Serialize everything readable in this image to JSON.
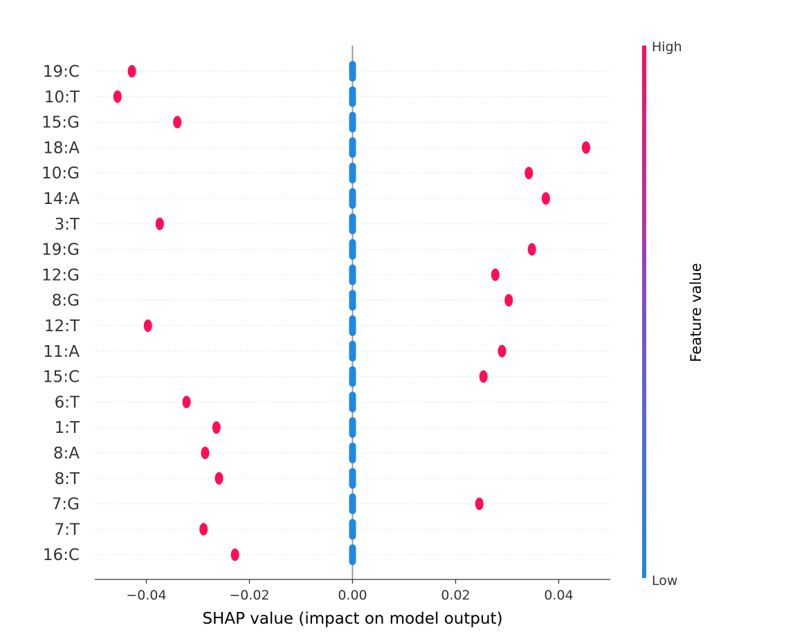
{
  "chart_data": {
    "type": "scatter",
    "subtype": "shap-beeswarm",
    "title": "",
    "xlabel": "SHAP value (impact on model output)",
    "ylabel": "",
    "xlim": [
      -0.05,
      0.05
    ],
    "xticks": [
      -0.04,
      -0.02,
      0.0,
      0.02,
      0.04
    ],
    "xtick_labels": [
      "−0.04",
      "−0.02",
      "0.00",
      "0.02",
      "0.04"
    ],
    "grid": "dotted horizontal row guides",
    "features": [
      "19:C",
      "10:T",
      "15:G",
      "18:A",
      "10:G",
      "14:A",
      "3:T",
      "19:G",
      "12:G",
      "8:G",
      "12:T",
      "11:A",
      "15:C",
      "6:T",
      "1:T",
      "8:A",
      "8:T",
      "7:G",
      "7:T",
      "16:C"
    ],
    "high_values": [
      -0.0428,
      -0.0456,
      -0.034,
      0.0453,
      0.0342,
      0.0375,
      -0.0374,
      0.0348,
      0.0277,
      0.0303,
      -0.0397,
      0.029,
      0.0254,
      -0.0322,
      -0.0264,
      -0.0286,
      -0.0259,
      0.0246,
      -0.0289,
      -0.0228
    ],
    "low_values": [
      0.0,
      0.0,
      0.0,
      0.0,
      0.0,
      0.0,
      0.0,
      0.0,
      0.0,
      0.0,
      0.0,
      0.0,
      0.0,
      0.0,
      0.0,
      0.0,
      0.0,
      0.0,
      0.0,
      0.0
    ],
    "colorbar": {
      "title": "Feature value",
      "high_label": "High",
      "low_label": "Low",
      "high_color": "#ff0d57",
      "low_color": "#1e88e5"
    }
  }
}
